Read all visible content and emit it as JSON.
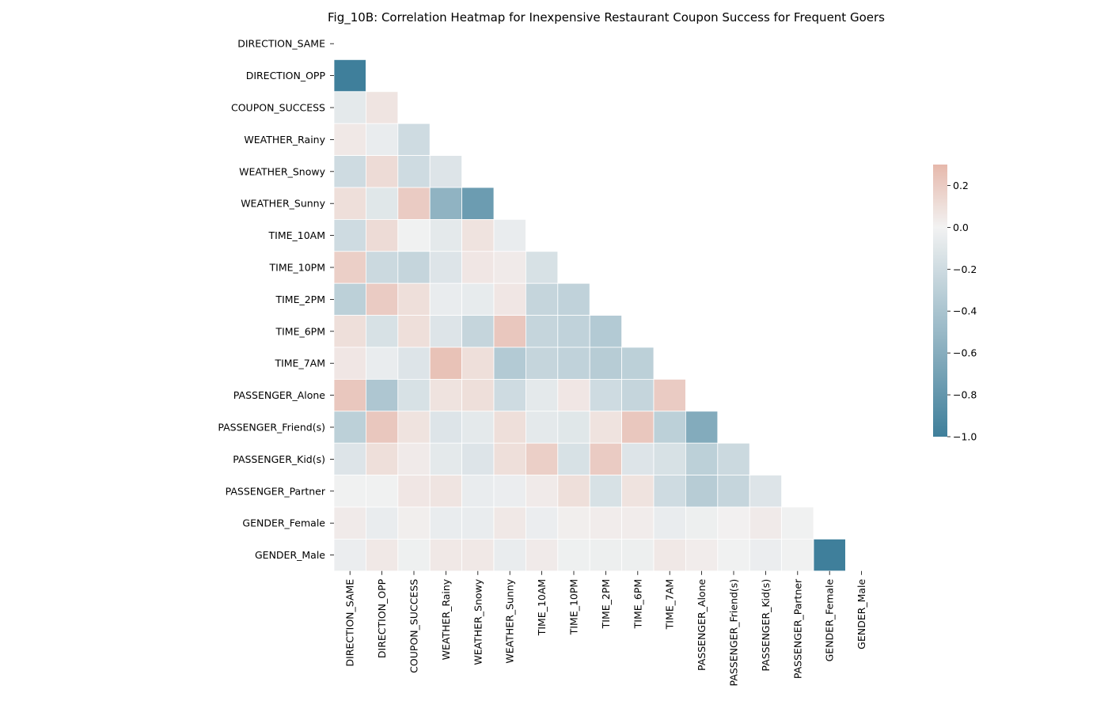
{
  "chart_data": {
    "type": "heatmap",
    "title": "Fig_10B: Correlation Heatmap for Inexpensive Restaurant Coupon Success for Frequent Goers",
    "variables": [
      "DIRECTION_SAME",
      "DIRECTION_OPP",
      "COUPON_SUCCESS",
      "WEATHER_Rainy",
      "WEATHER_Snowy",
      "WEATHER_Sunny",
      "TIME_10AM",
      "TIME_10PM",
      "TIME_2PM",
      "TIME_6PM",
      "TIME_7AM",
      "PASSENGER_Alone",
      "PASSENGER_Friend(s)",
      "PASSENGER_Kid(s)",
      "PASSENGER_Partner",
      "GENDER_Female",
      "GENDER_Male"
    ],
    "mask": "upper triangle including diagonal",
    "lower_triangle": [
      [],
      [
        -1.0
      ],
      [
        -0.08,
        0.07
      ],
      [
        0.05,
        -0.05,
        -0.2
      ],
      [
        -0.2,
        0.12,
        -0.2,
        -0.12
      ],
      [
        0.1,
        -0.1,
        0.2,
        -0.55,
        -0.75
      ],
      [
        -0.2,
        0.12,
        -0.01,
        -0.08,
        0.08,
        -0.05
      ],
      [
        0.18,
        -0.22,
        -0.25,
        -0.12,
        0.06,
        0.04,
        -0.15
      ],
      [
        -0.3,
        0.2,
        0.1,
        -0.05,
        -0.06,
        0.06,
        -0.25,
        -0.28
      ],
      [
        0.1,
        -0.15,
        0.1,
        -0.12,
        -0.25,
        0.22,
        -0.25,
        -0.28,
        -0.35
      ],
      [
        0.06,
        -0.05,
        -0.12,
        0.25,
        0.1,
        -0.35,
        -0.25,
        -0.28,
        -0.33,
        -0.3
      ],
      [
        0.22,
        -0.38,
        -0.15,
        0.08,
        0.1,
        -0.2,
        -0.08,
        0.06,
        -0.2,
        -0.25,
        0.2
      ],
      [
        -0.3,
        0.22,
        0.08,
        -0.12,
        -0.08,
        0.1,
        -0.08,
        -0.1,
        0.08,
        0.22,
        -0.3,
        -0.62
      ],
      [
        -0.12,
        0.1,
        0.04,
        -0.08,
        -0.12,
        0.1,
        0.18,
        -0.15,
        0.2,
        -0.12,
        -0.15,
        -0.3,
        -0.22
      ],
      [
        -0.01,
        -0.01,
        0.06,
        0.07,
        -0.05,
        -0.04,
        0.04,
        0.1,
        -0.15,
        0.08,
        -0.2,
        -0.33,
        -0.25,
        -0.12
      ],
      [
        0.04,
        -0.05,
        0.02,
        -0.05,
        -0.05,
        0.05,
        -0.04,
        0.02,
        0.03,
        0.03,
        -0.05,
        -0.03,
        0.01,
        0.04,
        -0.01
      ],
      [
        -0.04,
        0.05,
        -0.02,
        0.05,
        0.05,
        -0.05,
        0.04,
        -0.02,
        -0.03,
        -0.03,
        0.05,
        0.03,
        -0.01,
        -0.04,
        -0.01,
        -1.0
      ]
    ],
    "colorbar": {
      "min": -1.0,
      "max": 0.3,
      "ticks": [
        0.2,
        0.0,
        -0.2,
        -0.4,
        -0.6,
        -0.8,
        -1.0
      ],
      "tick_labels": [
        "0.2",
        "0.0",
        "−0.2",
        "−0.4",
        "−0.6",
        "−0.8",
        "−1.0"
      ]
    },
    "colormap": {
      "negative_end": "#3f7f9b",
      "center": "#f2f2f2",
      "positive_end": "#e6b8ab"
    },
    "grid": false,
    "legend": "colorbar right"
  }
}
